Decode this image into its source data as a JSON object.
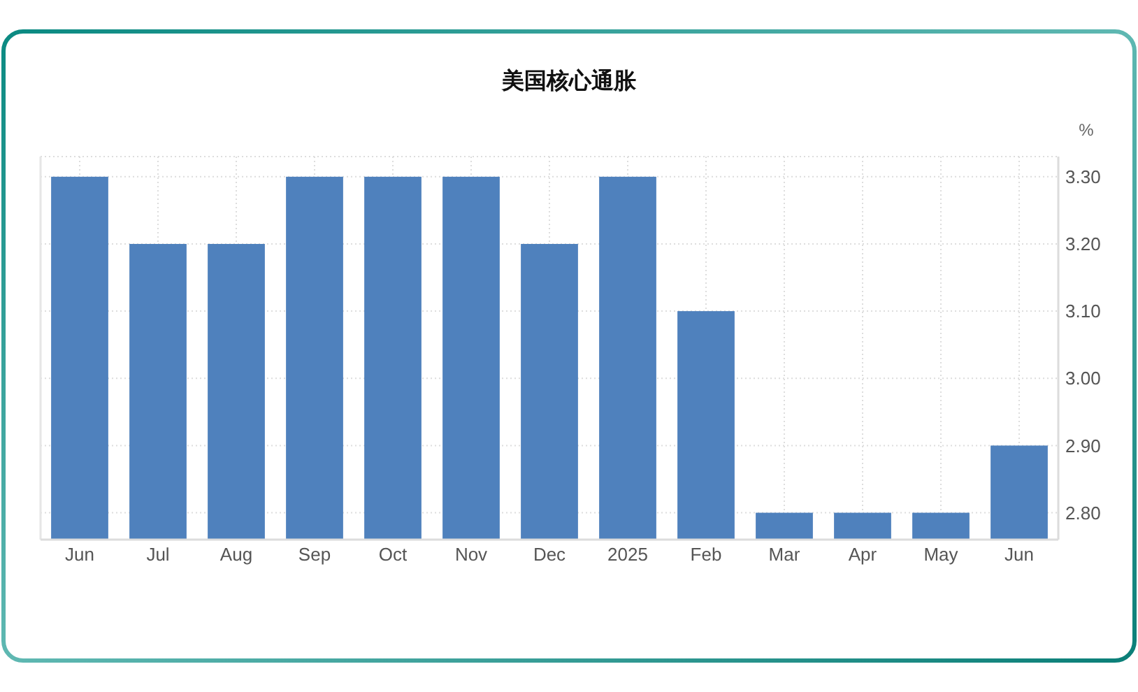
{
  "chart_data": {
    "type": "bar",
    "title": "美国核心通胀",
    "ylabel": "%",
    "categories": [
      "Jun",
      "Jul",
      "Aug",
      "Sep",
      "Oct",
      "Nov",
      "Dec",
      "2025",
      "Feb",
      "Mar",
      "Apr",
      "May",
      "Jun"
    ],
    "values": [
      3.3,
      3.2,
      3.2,
      3.3,
      3.3,
      3.3,
      3.2,
      3.3,
      3.1,
      2.8,
      2.8,
      2.8,
      2.9
    ],
    "color": "#4f81bd",
    "ylim": [
      2.76,
      3.33
    ],
    "yticks": [
      {
        "value": 2.8,
        "label": "2.80"
      },
      {
        "value": 2.9,
        "label": "2.90"
      },
      {
        "value": 3.0,
        "label": "3.00"
      },
      {
        "value": 3.1,
        "label": "3.10"
      },
      {
        "value": 3.2,
        "label": "3.20"
      },
      {
        "value": 3.3,
        "label": "3.30"
      }
    ],
    "grid": true
  }
}
